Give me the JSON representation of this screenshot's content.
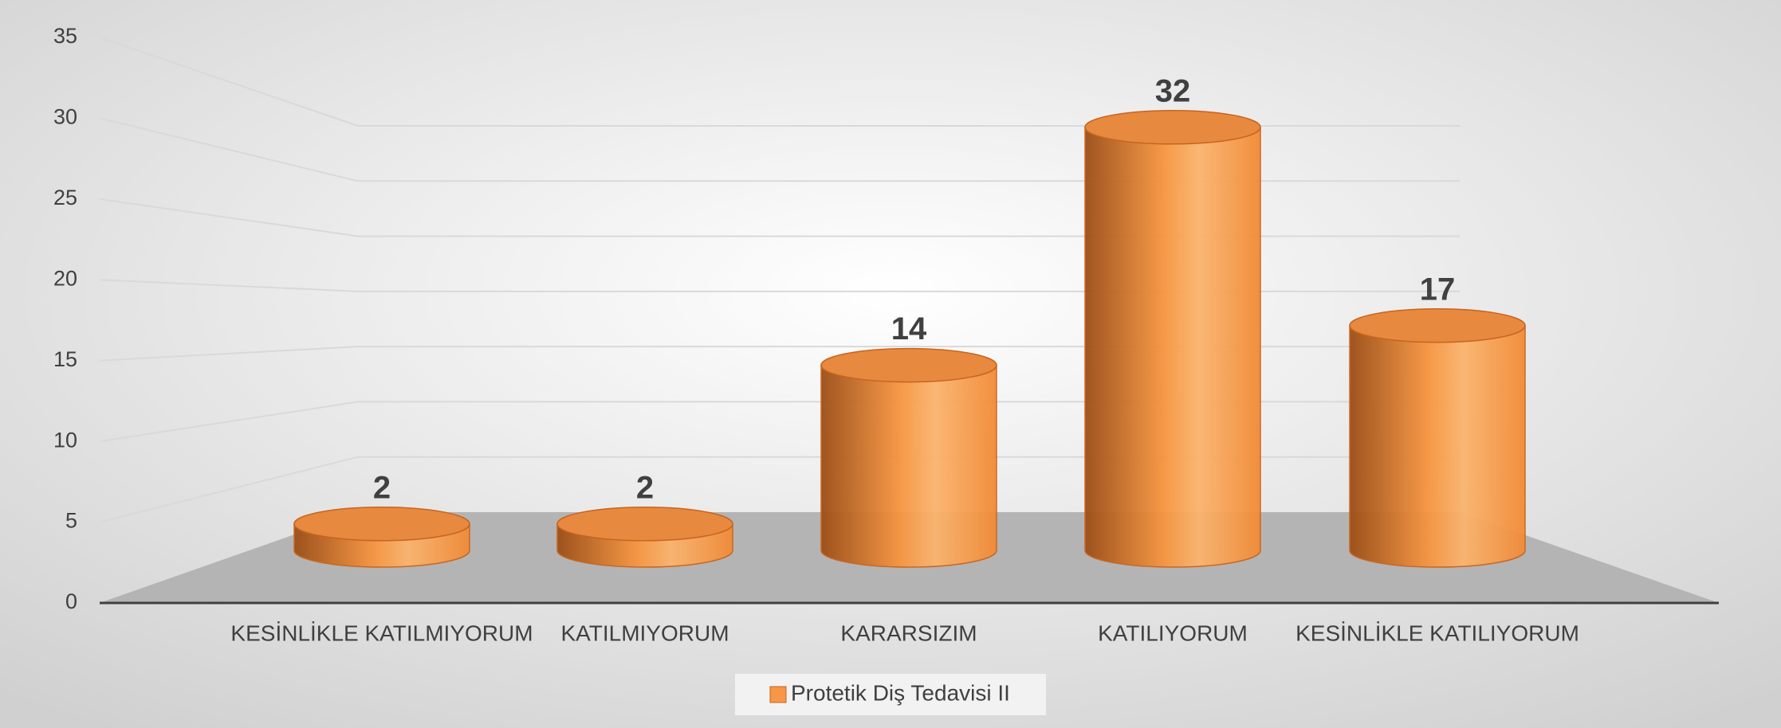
{
  "chart_data": {
    "type": "bar3d",
    "categories": [
      "KESİNLİKLE KATILMIYORUM",
      "KATILMIYORUM",
      "KARARSIZIM",
      "KATILIYORUM",
      "KESİNLİKLE KATILIYORUM"
    ],
    "series": [
      {
        "name": "Protetik Diş Tedavisi II",
        "color": "#f79646",
        "values": [
          2,
          2,
          14,
          32,
          17
        ]
      }
    ],
    "ylim": [
      0,
      35
    ],
    "yticks": [
      0,
      5,
      10,
      15,
      20,
      25,
      30,
      35
    ],
    "grid": true,
    "legend": "bottom"
  }
}
